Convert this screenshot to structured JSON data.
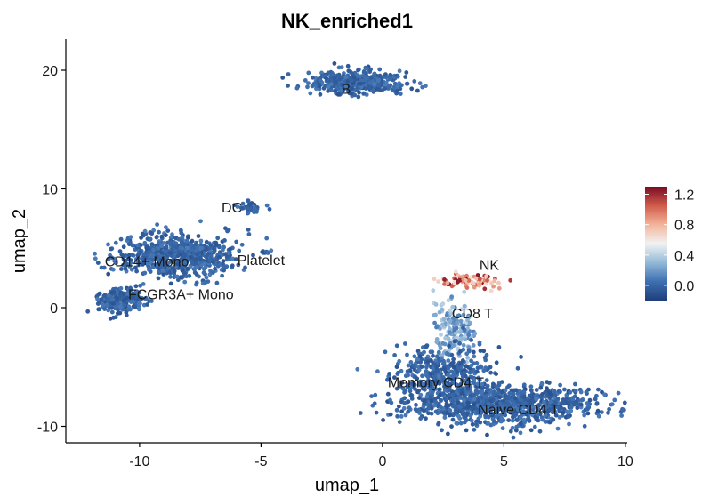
{
  "chart_data": {
    "type": "scatter",
    "title": "NK_enriched1",
    "xlabel": "umap_1",
    "ylabel": "umap_2",
    "xlim": [
      -13,
      10
    ],
    "ylim": [
      -11,
      22.5
    ],
    "x_ticks": [
      -10,
      -5,
      0,
      5,
      10
    ],
    "y_ticks": [
      -10,
      0,
      10,
      20
    ],
    "x_tick_labels": [
      "-10",
      "-5",
      "0",
      "5",
      "10"
    ],
    "y_tick_labels": [
      "-10",
      "0",
      "10",
      "20"
    ],
    "grid": false,
    "legend": {
      "position": "right",
      "type": "colorbar",
      "min": -0.2,
      "max": 1.3,
      "ticks": [
        0.0,
        0.4,
        0.8,
        1.2
      ],
      "tick_labels": [
        "0.0",
        "0.4",
        "0.8",
        "1.2"
      ],
      "colors": [
        "#1f3f7a",
        "#3d6fb0",
        "#93b9d8",
        "#f2f2f2",
        "#f3b49a",
        "#d05b4b",
        "#7a0c22"
      ]
    },
    "clusters": [
      {
        "name": "B",
        "label_x": -1.5,
        "label_y": 18.0,
        "cx": -1.0,
        "cy": 19.0,
        "sx": 1.0,
        "sy": 0.45,
        "n": 450,
        "score": 0.0
      },
      {
        "name": "DC",
        "label_x": -6.2,
        "label_y": 8.0,
        "cx": -5.6,
        "cy": 8.4,
        "sx": 0.3,
        "sy": 0.3,
        "n": 30,
        "score": 0.0
      },
      {
        "name": "Platelet",
        "label_x": -5.0,
        "label_y": 3.6,
        "cx": -4.8,
        "cy": 4.7,
        "sx": 0.15,
        "sy": 0.08,
        "n": 8,
        "score": 0.0
      },
      {
        "name": "CD14+ Mono",
        "label_x": -9.7,
        "label_y": 3.5,
        "cx": -8.5,
        "cy": 4.4,
        "sx": 1.2,
        "sy": 0.9,
        "n": 700,
        "score": 0.0
      },
      {
        "name": "FCGR3A+ Mono",
        "label_x": -8.3,
        "label_y": 0.7,
        "cx": -10.8,
        "cy": 0.6,
        "sx": 0.45,
        "sy": 0.5,
        "n": 250,
        "score": 0.0
      },
      {
        "name": "NK",
        "label_x": 4.4,
        "label_y": 3.2,
        "cx": 3.7,
        "cy": 2.2,
        "sx": 0.6,
        "sy": 0.3,
        "n": 90,
        "score": 0.8
      },
      {
        "name": "CD8 T",
        "label_x": 3.7,
        "label_y": -0.9,
        "cx": 3.0,
        "cy": -2.0,
        "sx": 0.45,
        "sy": 1.2,
        "n": 160,
        "score": 0.15
      },
      {
        "name": "Memory CD4 T",
        "label_x": 2.2,
        "label_y": -6.7,
        "cx": 2.5,
        "cy": -5.8,
        "sx": 1.1,
        "sy": 1.3,
        "n": 400,
        "score": 0.0
      },
      {
        "name": "Naive CD4 T",
        "label_x": 5.6,
        "label_y": -9.0,
        "cx": 5.0,
        "cy": -8.2,
        "sx": 1.9,
        "sy": 0.8,
        "n": 900,
        "score": 0.0
      }
    ]
  }
}
